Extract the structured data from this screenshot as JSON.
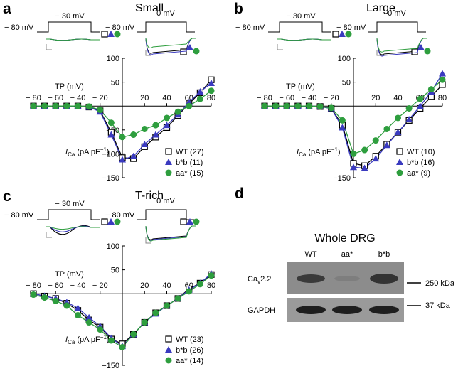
{
  "chart_data": [
    {
      "type": "scatter",
      "panel": "a",
      "title": "Small",
      "protocols": [
        {
          "hold": "− 80 mV",
          "step": "− 30 mV"
        },
        {
          "hold": "− 80 mV",
          "step": "0 mV"
        }
      ],
      "xlabel": "TP (mV)",
      "ylabel": {
        "symbol": "I",
        "sub": "Ca",
        "unit": " (pA pF",
        "sup": "−1",
        "close": ")"
      },
      "x": [
        -80,
        -70,
        -60,
        -50,
        -40,
        -30,
        -20,
        -10,
        0,
        10,
        20,
        30,
        40,
        50,
        60,
        70,
        80
      ],
      "xlim": [
        -80,
        80
      ],
      "ylim": [
        -150,
        100
      ],
      "xticks": [
        {
          "value": -80,
          "label": "− 80"
        },
        {
          "value": -60,
          "label": "− 60"
        },
        {
          "value": -40,
          "label": "− 40"
        },
        {
          "value": -20,
          "label": "− 20"
        },
        20,
        40,
        60,
        80
      ],
      "yticks": [
        {
          "value": -150,
          "label": "−150"
        },
        {
          "value": -100,
          "label": "−100"
        },
        {
          "value": -50,
          "label": "−50"
        },
        50,
        100
      ],
      "series": [
        {
          "name": "WT (27)",
          "color": "#000000",
          "marker": "square",
          "values": [
            0,
            0,
            0,
            0,
            0,
            -2,
            -10,
            -55,
            -108,
            -110,
            -85,
            -65,
            -45,
            -20,
            5,
            28,
            55
          ]
        },
        {
          "name": "b*b (11)",
          "color": "#3a3abf",
          "marker": "triangle",
          "values": [
            0,
            0,
            0,
            0,
            0,
            -2,
            -12,
            -60,
            -112,
            -105,
            -80,
            -60,
            -40,
            -18,
            8,
            30,
            48
          ]
        },
        {
          "name": "aa* (15)",
          "color": "#2e9e3e",
          "marker": "circle",
          "values": [
            0,
            0,
            0,
            0,
            0,
            -1,
            -8,
            -35,
            -65,
            -60,
            -48,
            -40,
            -25,
            -12,
            0,
            15,
            32
          ]
        }
      ]
    },
    {
      "type": "scatter",
      "panel": "b",
      "title": "Large",
      "protocols": [
        {
          "hold": "− 80 mV",
          "step": "− 30 mV"
        },
        {
          "hold": "− 80 mV",
          "step": "0 mV"
        }
      ],
      "xlabel": "TP (mV)",
      "ylabel": {
        "symbol": "I",
        "sub": "Ca",
        "unit": " (pA pF",
        "sup": "−1",
        "close": ")"
      },
      "x": [
        -80,
        -70,
        -60,
        -50,
        -40,
        -30,
        -20,
        -10,
        0,
        10,
        20,
        30,
        40,
        50,
        60,
        70,
        80
      ],
      "xlim": [
        -80,
        80
      ],
      "ylim": [
        -150,
        100
      ],
      "xticks": [
        {
          "value": -80,
          "label": "− 80"
        },
        {
          "value": -60,
          "label": "− 60"
        },
        {
          "value": -40,
          "label": "− 40"
        },
        {
          "value": -20,
          "label": "− 20"
        },
        20,
        40,
        60,
        80
      ],
      "yticks": [
        {
          "value": -150,
          "label": "−150"
        },
        50,
        100
      ],
      "series": [
        {
          "name": "WT (10)",
          "color": "#000000",
          "marker": "square",
          "values": [
            0,
            0,
            0,
            0,
            0,
            -1,
            -5,
            -40,
            -120,
            -125,
            -105,
            -80,
            -55,
            -30,
            -5,
            20,
            45
          ]
        },
        {
          "name": "b*b (16)",
          "color": "#3a3abf",
          "marker": "triangle",
          "values": [
            0,
            0,
            0,
            0,
            0,
            -1,
            -5,
            -45,
            -128,
            -130,
            -110,
            -82,
            -55,
            -28,
            0,
            30,
            68
          ]
        },
        {
          "name": "aa* (9)",
          "color": "#2e9e3e",
          "marker": "circle",
          "values": [
            0,
            0,
            0,
            0,
            0,
            -1,
            -4,
            -30,
            -100,
            -92,
            -72,
            -48,
            -25,
            -5,
            15,
            35,
            55
          ]
        }
      ]
    },
    {
      "type": "scatter",
      "panel": "c",
      "title": "T-rich",
      "protocols": [
        {
          "hold": "− 80 mV",
          "step": "− 30 mV"
        },
        {
          "hold": "− 80 mV",
          "step": "0 mV"
        }
      ],
      "xlabel": "TP (mV)",
      "ylabel": {
        "symbol": "I",
        "sub": "Ca",
        "unit": " (pA pF",
        "sup": "−1",
        "close": ")"
      },
      "x": [
        -80,
        -70,
        -60,
        -50,
        -40,
        -30,
        -20,
        -10,
        0,
        10,
        20,
        30,
        40,
        50,
        60,
        70,
        80
      ],
      "xlim": [
        -80,
        80
      ],
      "ylim": [
        -150,
        100
      ],
      "xticks": [
        {
          "value": -80,
          "label": "− 80"
        },
        {
          "value": -60,
          "label": "− 60"
        },
        {
          "value": -40,
          "label": "− 40"
        },
        {
          "value": -20,
          "label": "− 20"
        },
        20,
        40,
        60,
        80
      ],
      "yticks": [
        {
          "value": -150,
          "label": "−150"
        },
        50,
        100
      ],
      "series": [
        {
          "name": "WT (23)",
          "color": "#000000",
          "marker": "square",
          "values": [
            0,
            -5,
            -10,
            -20,
            -35,
            -55,
            -70,
            -95,
            -105,
            -85,
            -60,
            -40,
            -25,
            -10,
            10,
            22,
            40
          ]
        },
        {
          "name": "b*b (26)",
          "color": "#3a3abf",
          "marker": "triangle",
          "values": [
            0,
            -5,
            -10,
            -18,
            -30,
            -50,
            -68,
            -93,
            -110,
            -85,
            -60,
            -42,
            -25,
            -10,
            8,
            22,
            42
          ]
        },
        {
          "name": "aa* (14)",
          "color": "#2e9e3e",
          "marker": "circle",
          "values": [
            -2,
            -8,
            -15,
            -25,
            -45,
            -60,
            -75,
            -98,
            -112,
            -85,
            -60,
            -40,
            -25,
            -10,
            5,
            20,
            38
          ]
        }
      ]
    }
  ],
  "blot": {
    "panel": "d",
    "title": "Whole DRG",
    "lanes": [
      "WT",
      "aa*",
      "b*b"
    ],
    "rows": [
      {
        "label": {
          "main": "Ca",
          "sub": "v",
          "rest": "2.2"
        },
        "marker": "250 kDa"
      },
      {
        "label": {
          "main": "GAPDH"
        },
        "marker": "37 kDa"
      }
    ]
  }
}
